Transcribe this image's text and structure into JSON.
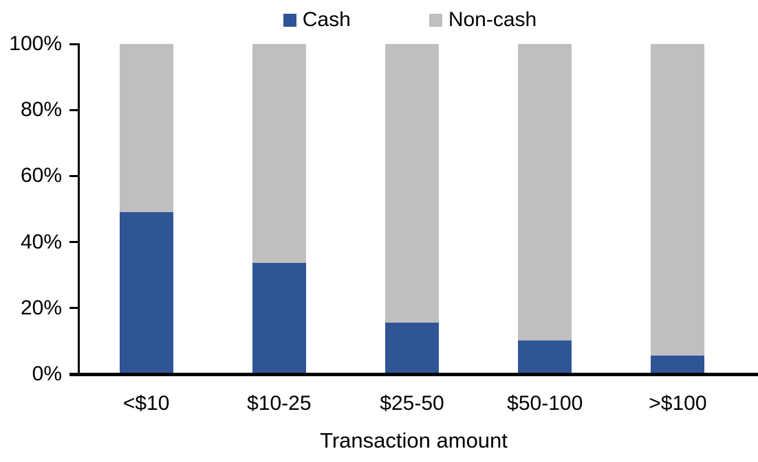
{
  "chart_data": {
    "type": "bar",
    "stacked": true,
    "percent_stacked": true,
    "title": "",
    "xlabel": "Transaction amount",
    "ylabel": "",
    "categories": [
      "<$10",
      "$10-25",
      "$25-50",
      "$50-100",
      ">$100"
    ],
    "series": [
      {
        "name": "Cash",
        "color": "#2F5597",
        "values": [
          49,
          33.5,
          15.5,
          10,
          5.5
        ]
      },
      {
        "name": "Non-cash",
        "color": "#BFBFBF",
        "values": [
          51,
          66.5,
          84.5,
          90,
          94.5
        ]
      }
    ],
    "ylim": [
      0,
      100
    ],
    "y_ticks": [
      0,
      20,
      40,
      60,
      80,
      100
    ],
    "y_tick_format": "percent",
    "grid": false,
    "legend_position": "top-center",
    "axis_color": "#000000",
    "background_color": "#FFFFFF"
  },
  "y_axis": {
    "tick_labels": [
      "100%",
      "80%",
      "60%",
      "40%",
      "20%",
      "0%"
    ]
  },
  "x_axis": {
    "title": "Transaction amount"
  }
}
